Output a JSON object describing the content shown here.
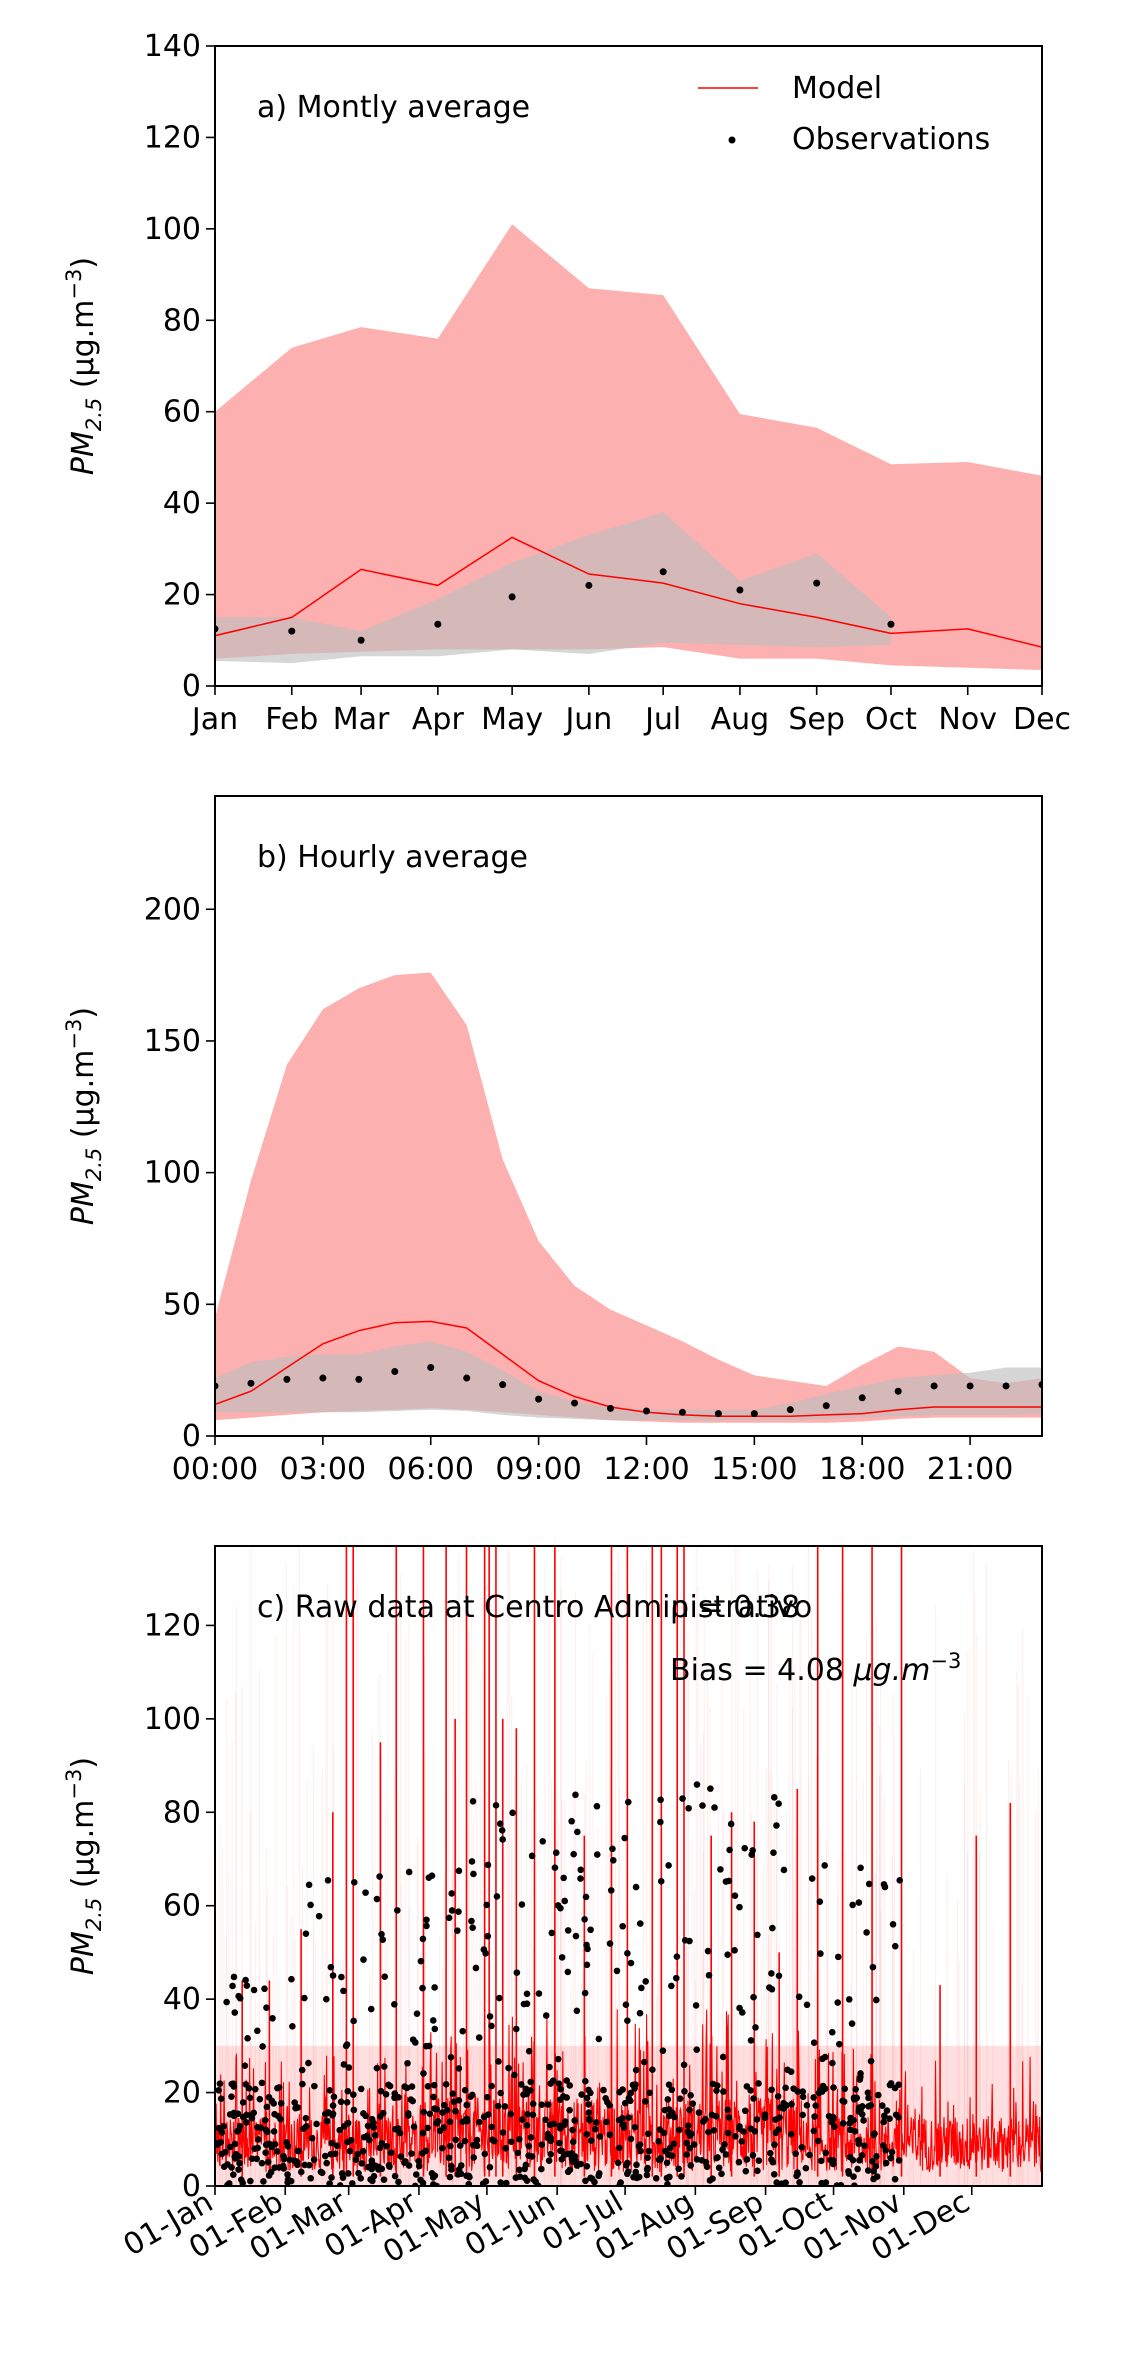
{
  "chart_data": [
    {
      "type": "line",
      "panel": "a",
      "title": "a) Montly average",
      "ylabel_main": "PM",
      "ylabel_sub": "2.5",
      "ylabel_unit": " (μg.m",
      "ylabel_exp": "−3",
      "ylabel_close": ")",
      "categories": [
        "Jan",
        "Feb",
        "Mar",
        "Apr",
        "May",
        "Jun",
        "Jul",
        "Aug",
        "Sep",
        "Oct",
        "Nov",
        "Dec"
      ],
      "month_start_day": [
        0,
        31,
        59,
        90,
        120,
        151,
        181,
        212,
        243,
        273,
        304,
        334
      ],
      "xlim": [
        0,
        334
      ],
      "ylim": [
        0,
        140
      ],
      "yticks": [
        0,
        20,
        40,
        60,
        80,
        100,
        120,
        140
      ],
      "legend_position": "top-right",
      "legend": [
        {
          "label": "Model",
          "kind": "line",
          "color": "#ff0000"
        },
        {
          "label": "Observations",
          "kind": "dot",
          "color": "#000000"
        }
      ],
      "model_color": "#ff0000",
      "model_band_color": "#fdb0b0",
      "obs_band_color": "#bdbdbd",
      "model": [
        11,
        15,
        25.5,
        22,
        32.5,
        24.5,
        22.5,
        18,
        15,
        11.5,
        12.5,
        8.5
      ],
      "model_band_high": [
        60,
        74,
        78.5,
        76,
        101,
        87,
        85.5,
        59.5,
        56.5,
        48.5,
        49,
        46
      ],
      "model_band_low": [
        6,
        7,
        7.5,
        8,
        8,
        8,
        8.5,
        6,
        6,
        4.5,
        4,
        3.5
      ],
      "obs_x": [
        0,
        31,
        59,
        90,
        120,
        151,
        181,
        212,
        243,
        273
      ],
      "obs": [
        12.5,
        12,
        10,
        13.5,
        19.5,
        22,
        25,
        21,
        22.5,
        13.5
      ],
      "obs_band_high": [
        15,
        15,
        12,
        19,
        27,
        33,
        38,
        23,
        29,
        15
      ],
      "obs_band_low": [
        5.5,
        5,
        6.5,
        6.5,
        8,
        7,
        9.5,
        9,
        8.5,
        9
      ]
    },
    {
      "type": "line",
      "panel": "b",
      "title": "b) Hourly average",
      "ylabel_main": "PM",
      "ylabel_sub": "2.5",
      "ylabel_unit": " (μg.m",
      "ylabel_exp": "−3",
      "ylabel_close": ")",
      "xticks": [
        "00:00",
        "03:00",
        "06:00",
        "09:00",
        "12:00",
        "15:00",
        "18:00",
        "21:00"
      ],
      "xtick_hours": [
        0,
        3,
        6,
        9,
        12,
        15,
        18,
        21
      ],
      "xlim": [
        0,
        23
      ],
      "ylim": [
        0,
        243
      ],
      "yticks": [
        0,
        50,
        100,
        150,
        200
      ],
      "hours": [
        0,
        1,
        2,
        3,
        4,
        5,
        6,
        7,
        8,
        9,
        10,
        11,
        12,
        13,
        14,
        15,
        16,
        17,
        18,
        19,
        20,
        21,
        22,
        23
      ],
      "model": [
        12,
        17,
        26,
        35,
        40,
        43,
        43.5,
        41,
        31,
        21,
        15,
        11,
        9,
        8,
        7.5,
        7.5,
        7.5,
        8,
        8.5,
        10,
        11,
        11,
        11,
        11
      ],
      "model_band_high": [
        45,
        97,
        141,
        162,
        170,
        175,
        176,
        156,
        105,
        74,
        57,
        48,
        42,
        36,
        29,
        23,
        21,
        19,
        27,
        34,
        32,
        22,
        20,
        22
      ],
      "model_band_low": [
        6,
        7,
        8,
        9,
        9.5,
        10,
        10.5,
        10,
        9,
        8,
        7,
        6,
        5.5,
        5,
        5,
        5,
        5,
        5,
        5.5,
        6.5,
        7,
        7,
        7,
        7
      ],
      "obs": [
        19,
        20,
        21.5,
        22,
        21.5,
        24.5,
        26,
        22,
        19.5,
        14,
        12.5,
        10.5,
        9.5,
        9,
        8.5,
        8.5,
        10,
        11.5,
        14.5,
        17,
        19,
        19,
        19,
        19.5
      ],
      "obs_band_high": [
        22,
        28,
        30,
        31,
        31,
        34,
        36,
        32,
        25,
        17,
        13,
        11,
        10,
        10,
        10,
        10,
        12.5,
        16,
        19,
        22,
        23,
        24,
        26,
        26
      ],
      "obs_band_low": [
        9,
        9,
        9,
        9,
        9,
        9.5,
        10,
        9.5,
        8,
        7,
        6.5,
        6,
        6,
        6,
        6,
        6,
        6,
        6.5,
        7,
        7.5,
        8,
        8,
        8,
        8.5
      ]
    },
    {
      "type": "line",
      "panel": "c",
      "title": "c) Raw data at Centro Administrativo",
      "stat_r": "ρ = 0.38",
      "stat_bias": "Bias = 4.08",
      "stat_bias_unit": " μg.m",
      "stat_bias_exp": "−3",
      "ylabel_main": "PM",
      "ylabel_sub": "2.5",
      "ylabel_unit": " (μg.m",
      "ylabel_exp": "−3",
      "ylabel_close": ")",
      "xticks": [
        "01-Jan",
        "01-Feb",
        "01-Mar",
        "01-Apr",
        "01-May",
        "01-Jun",
        "01-Jul",
        "01-Aug",
        "01-Sep",
        "01-Oct",
        "01-Nov",
        "01-Dec"
      ],
      "xtick_days": [
        0,
        31,
        59,
        90,
        120,
        151,
        181,
        212,
        243,
        273,
        304,
        334
      ],
      "xlim": [
        0,
        365
      ],
      "ylim": [
        0,
        137
      ],
      "yticks": [
        0,
        20,
        40,
        60,
        80,
        100,
        120
      ],
      "obs_end_day": 303,
      "model_color": "#ff0000",
      "obs_color": "#000000",
      "model_peak_days": [
        12,
        24,
        38,
        52,
        58,
        61,
        73,
        80,
        92,
        102,
        106,
        111,
        119,
        121,
        124,
        127,
        133,
        141,
        150,
        163,
        175,
        182,
        193,
        197,
        204,
        207,
        219,
        228,
        238,
        249,
        257,
        266,
        277,
        290,
        303,
        320,
        336,
        351
      ],
      "model_peak_values": [
        44,
        44,
        55,
        80,
        137,
        137,
        95,
        137,
        137,
        137,
        100,
        137,
        137,
        137,
        137,
        100,
        98,
        137,
        137,
        75,
        137,
        137,
        137,
        137,
        137,
        137,
        75,
        80,
        78,
        50,
        85,
        137,
        137,
        137,
        137,
        43,
        75,
        82
      ]
    }
  ]
}
